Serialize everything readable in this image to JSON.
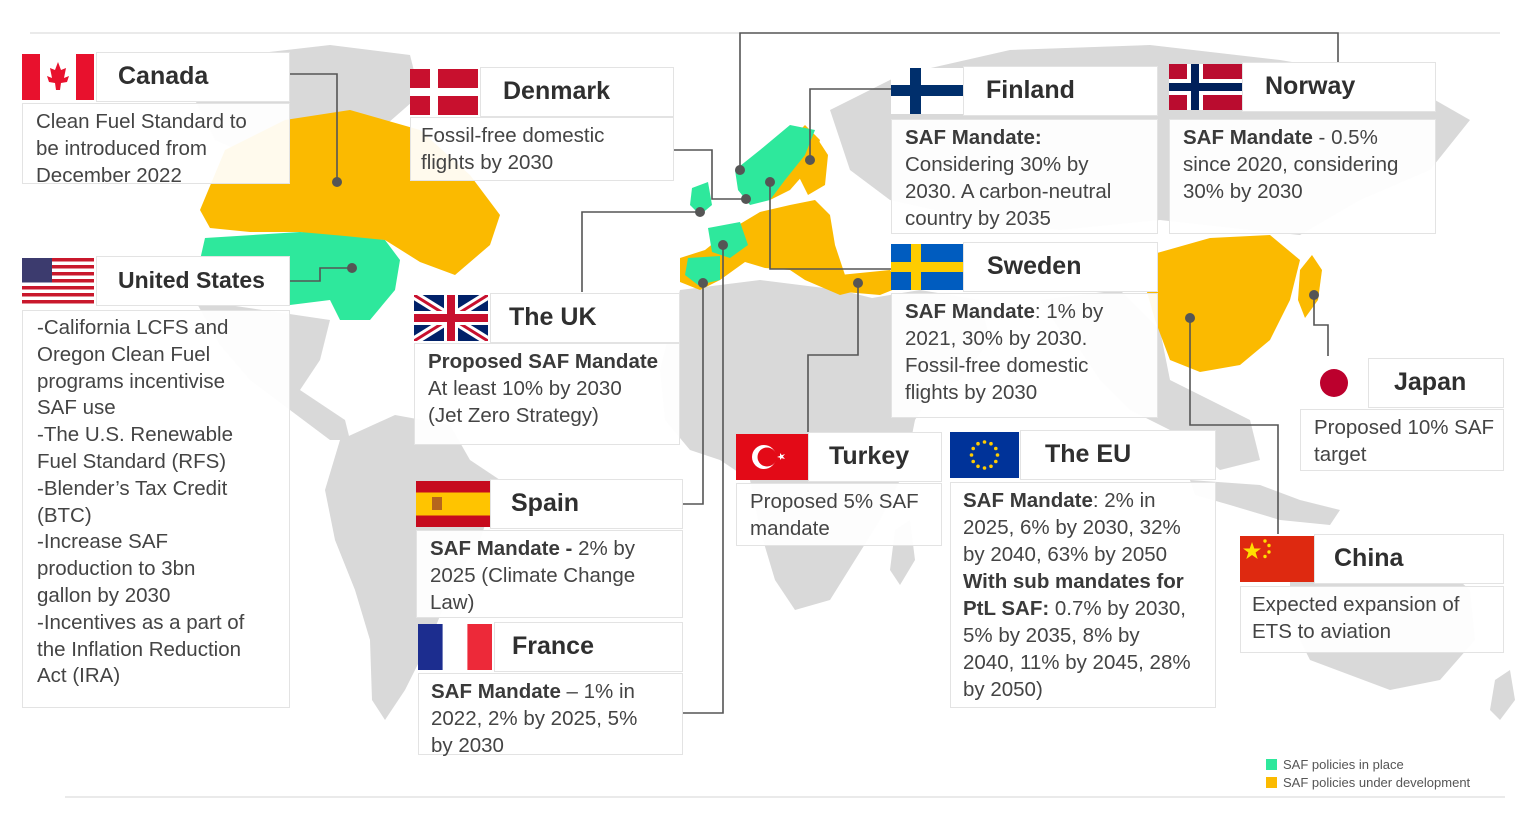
{
  "colors": {
    "in_place": "#2ee89c",
    "under_development": "#fbba00",
    "land": "#d9d9d9",
    "connector": "#555555"
  },
  "legend": {
    "in_place": "SAF policies in place",
    "under_development": "SAF policies under development"
  },
  "countries": {
    "canada": {
      "name": "Canada",
      "flag": "canada-flag",
      "lines": [
        "Clean Fuel Standard to",
        "be introduced from",
        "December 2022"
      ]
    },
    "us": {
      "name": "United States",
      "flag": "us-flag",
      "lines": [
        "-California LCFS and",
        "Oregon Clean Fuel",
        "programs incentivise",
        "SAF use",
        "-The U.S. Renewable",
        "Fuel Standard (RFS)",
        "-Blender’s Tax Credit",
        "(BTC)",
        "-Increase SAF",
        "production to 3bn",
        "gallon by 2030",
        "-Incentives as a part of",
        "the Inflation Reduction",
        "Act (IRA)"
      ]
    },
    "denmark": {
      "name": "Denmark",
      "flag": "denmark-flag",
      "lines": [
        "Fossil-free domestic",
        "flights by 2030"
      ]
    },
    "uk": {
      "name": "The UK",
      "flag": "uk-flag",
      "bold": "Proposed SAF Mandate",
      "lines": [
        "At least 10% by 2030",
        "(Jet Zero Strategy)"
      ]
    },
    "spain": {
      "name": "Spain",
      "flag": "spain-flag",
      "bold": "SAF Mandate -",
      "first_rest": " 2% by",
      "lines": [
        "2025 (Climate Change",
        "Law)"
      ]
    },
    "france": {
      "name": "France",
      "flag": "france-flag",
      "bold": "SAF Mandate",
      "first_rest": " – 1% in",
      "lines": [
        "2022, 2% by 2025, 5%",
        "by 2030"
      ]
    },
    "finland": {
      "name": "Finland",
      "flag": "finland-flag",
      "bold": "SAF Mandate:",
      "lines": [
        "Considering 30% by",
        "2030. A carbon-neutral",
        "country by 2035"
      ]
    },
    "norway": {
      "name": "Norway",
      "flag": "norway-flag",
      "bold": "SAF Mandate",
      "first_rest": " - 0.5%",
      "lines": [
        "since 2020, considering",
        "30% by 2030"
      ]
    },
    "sweden": {
      "name": "Sweden",
      "flag": "sweden-flag",
      "bold": "SAF Mandate",
      "first_rest": ": 1% by",
      "lines": [
        "2021, 30% by 2030.",
        "Fossil-free domestic",
        "flights by 2030"
      ]
    },
    "turkey": {
      "name": "Turkey",
      "flag": "turkey-flag",
      "lines": [
        "Proposed 5% SAF",
        "mandate"
      ]
    },
    "eu": {
      "name": "The EU",
      "flag": "eu-flag",
      "bold": "SAF Mandate",
      "first_rest": ": 2% in",
      "lines": [
        "2025, 6% by 2030, 32%",
        "by 2040, 63% by 2050"
      ],
      "bold2": "With sub mandates for",
      "bold3": "PtL SAF:",
      "line3_rest": " 0.7% by 2030,",
      "lines2": [
        "5% by 2035, 8% by",
        "2040, 11% by 2045, 28%",
        "by 2050)"
      ]
    },
    "japan": {
      "name": "Japan",
      "flag": "japan-flag",
      "lines": [
        "Proposed 10% SAF",
        "target"
      ]
    },
    "china": {
      "name": "China",
      "flag": "china-flag",
      "lines": [
        "Expected expansion of",
        "ETS to aviation"
      ]
    }
  }
}
